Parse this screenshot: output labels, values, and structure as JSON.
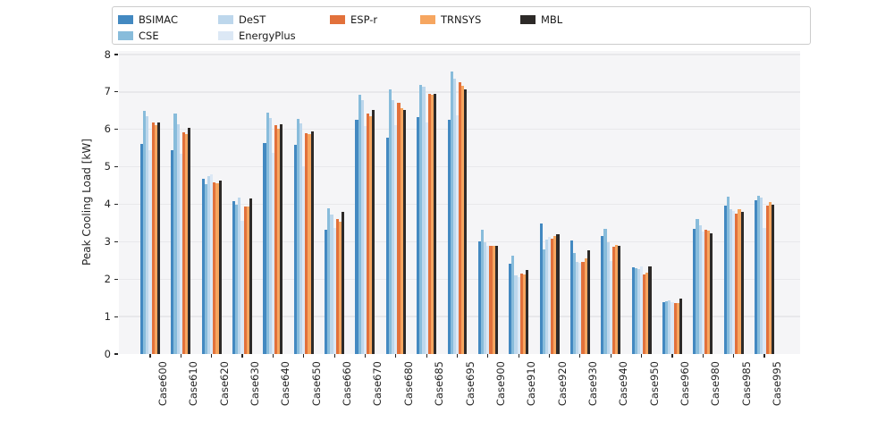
{
  "chart_data": {
    "type": "bar",
    "title": "",
    "xlabel": "",
    "ylabel": "Peak Cooling Load [kW]",
    "ylim": [
      0,
      8
    ],
    "yticks": [
      0,
      1,
      2,
      3,
      4,
      5,
      6,
      7,
      8
    ],
    "grid": true,
    "legend_position": "top",
    "plot_background": "#f5f5f7",
    "gridline_color": "#e8e8eb",
    "categories": [
      "Case600",
      "Case610",
      "Case620",
      "Case630",
      "Case640",
      "Case650",
      "Case660",
      "Case670",
      "Case680",
      "Case685",
      "Case695",
      "Case900",
      "Case910",
      "Case920",
      "Case930",
      "Case940",
      "Case950",
      "Case960",
      "Case980",
      "Case985",
      "Case995"
    ],
    "series": [
      {
        "name": "BSIMAC",
        "color": "#4389c1",
        "values": [
          5.62,
          5.44,
          4.69,
          4.09,
          5.64,
          5.6,
          3.32,
          6.25,
          5.78,
          6.34,
          6.26,
          3.02,
          2.41,
          3.48,
          3.03,
          3.15,
          2.32,
          1.38,
          3.35,
          3.96,
          4.1
        ]
      },
      {
        "name": "CSE",
        "color": "#88bcdb",
        "values": [
          6.5,
          6.43,
          4.53,
          3.99,
          6.44,
          6.28,
          3.89,
          6.93,
          7.08,
          7.18,
          7.55,
          3.32,
          2.63,
          2.79,
          2.71,
          3.34,
          2.3,
          1.42,
          3.61,
          4.2,
          4.23
        ]
      },
      {
        "name": "DeST",
        "color": "#bdd7ec",
        "values": [
          6.35,
          6.14,
          4.75,
          4.17,
          6.3,
          6.16,
          3.72,
          6.78,
          6.78,
          7.14,
          7.36,
          2.98,
          2.1,
          3.06,
          2.46,
          2.99,
          2.28,
          1.44,
          3.44,
          3.88,
          4.18
        ]
      },
      {
        "name": "EnergyPlus",
        "color": "#dce8f5",
        "values": [
          5.44,
          5.34,
          4.81,
          3.57,
          5.37,
          5.01,
          3.36,
          6.1,
          6.12,
          6.18,
          6.38,
          2.9,
          2.05,
          3.14,
          2.44,
          2.49,
          2.35,
          1.38,
          3.28,
          3.82,
          3.37
        ]
      },
      {
        "name": "ESP-r",
        "color": "#e2713b",
        "values": [
          6.19,
          5.92,
          4.59,
          3.95,
          6.12,
          5.9,
          3.61,
          6.42,
          6.7,
          6.96,
          7.26,
          2.9,
          2.15,
          3.08,
          2.47,
          2.87,
          2.12,
          1.37,
          3.32,
          3.75,
          3.96
        ]
      },
      {
        "name": "TRNSYS",
        "color": "#f6a660",
        "values": [
          6.11,
          5.88,
          4.55,
          3.93,
          6.02,
          5.87,
          3.54,
          6.35,
          6.56,
          6.93,
          7.16,
          2.89,
          2.12,
          3.16,
          2.55,
          2.91,
          2.17,
          1.37,
          3.3,
          3.86,
          4.07
        ]
      },
      {
        "name": "MBL",
        "color": "#2d2a28",
        "values": [
          6.19,
          6.05,
          4.63,
          4.16,
          6.14,
          5.94,
          3.8,
          6.52,
          6.53,
          6.94,
          7.06,
          2.9,
          2.24,
          3.19,
          2.76,
          2.89,
          2.33,
          1.47,
          3.23,
          3.8,
          4.0
        ]
      }
    ]
  }
}
